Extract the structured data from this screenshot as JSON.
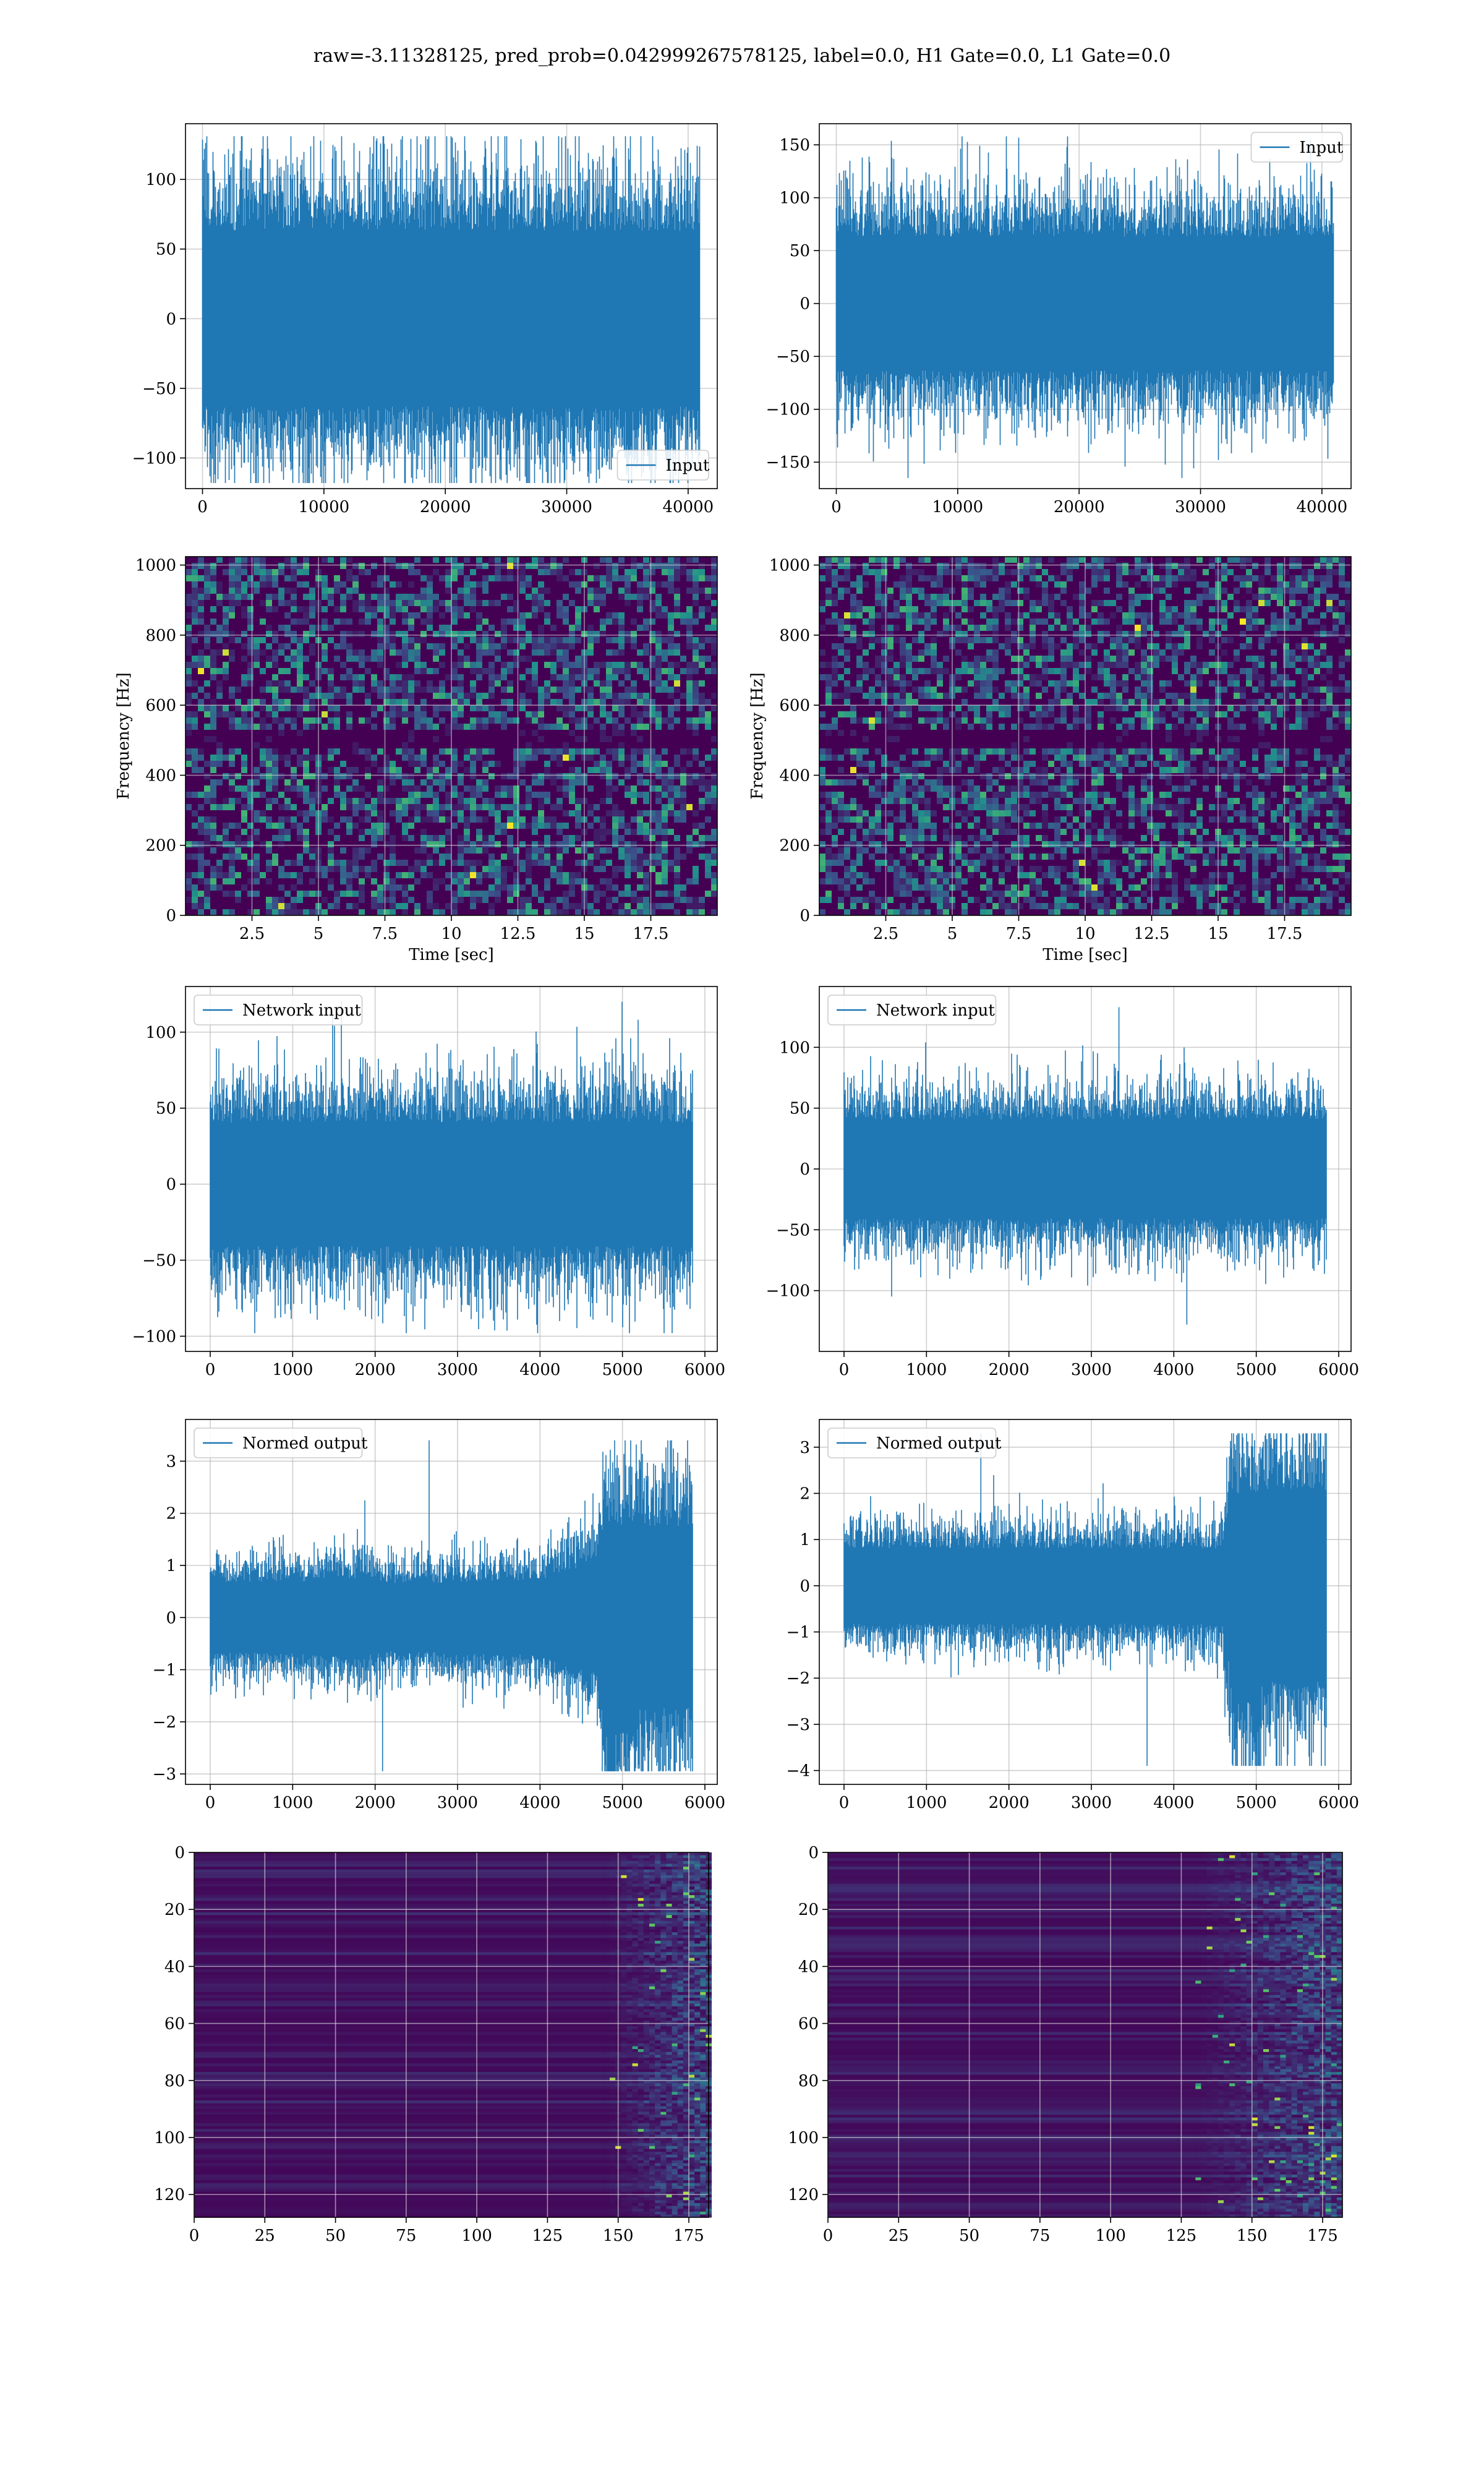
{
  "figure": {
    "suptitle": "raw=-3.11328125, pred_prob=0.042999267578125, label=0.0, H1 Gate=0.0, L1 Gate=0.0",
    "background": "#ffffff"
  },
  "colors": {
    "series": "#1f77b4",
    "grid": "#b0b0b0",
    "viridis_dark": "#440154",
    "viridis_mid": "#21918c",
    "viridis_light": "#5ec962",
    "viridis_yellow": "#fde725"
  },
  "chart_data": [
    {
      "id": "h1-input",
      "type": "line",
      "legend": "Input",
      "legend_loc": "lower right",
      "x": [
        0,
        40960
      ],
      "y_envelope_core": [
        -70,
        70
      ],
      "y_extremes": [
        -118,
        131
      ],
      "xlim": [
        -1400,
        42400
      ],
      "ylim": [
        -122,
        140
      ],
      "xticks": [
        0,
        10000,
        20000,
        30000,
        40000
      ],
      "yticks": [
        -100,
        -50,
        0,
        50,
        100
      ],
      "grid": true
    },
    {
      "id": "l1-input",
      "type": "line",
      "legend": "Input",
      "legend_loc": "upper right",
      "x": [
        0,
        40960
      ],
      "y_envelope_core": [
        -70,
        70
      ],
      "y_extremes": [
        -165,
        158
      ],
      "xlim": [
        -1400,
        42400
      ],
      "ylim": [
        -175,
        170
      ],
      "xticks": [
        0,
        10000,
        20000,
        30000,
        40000
      ],
      "yticks": [
        -150,
        -100,
        -50,
        0,
        50,
        100,
        150
      ],
      "grid": true
    },
    {
      "id": "h1-spectrogram",
      "type": "heatmap",
      "colormap": "viridis",
      "xlabel": "Time [sec]",
      "ylabel": "Frequency [Hz]",
      "xlim": [
        0,
        20
      ],
      "ylim": [
        0,
        1024
      ],
      "xticks": [
        2.5,
        5.0,
        7.5,
        10.0,
        12.5,
        15.0,
        17.5
      ],
      "yticks": [
        0,
        200,
        400,
        600,
        800,
        1000
      ],
      "dark_band_hz": [
        490,
        520
      ],
      "grid": true
    },
    {
      "id": "l1-spectrogram",
      "type": "heatmap",
      "colormap": "viridis",
      "xlabel": "Time [sec]",
      "ylabel": "Frequency [Hz]",
      "xlim": [
        0,
        20
      ],
      "ylim": [
        0,
        1024
      ],
      "xticks": [
        2.5,
        5.0,
        7.5,
        10.0,
        12.5,
        15.0,
        17.5
      ],
      "yticks": [
        0,
        200,
        400,
        600,
        800,
        1000
      ],
      "dark_band_hz": [
        490,
        520
      ],
      "grid": true
    },
    {
      "id": "h1-network-input",
      "type": "line",
      "legend": "Network input",
      "legend_loc": "upper left",
      "x": [
        0,
        5850
      ],
      "y_envelope_core": [
        -45,
        45
      ],
      "y_extremes": [
        -98,
        120
      ],
      "xlim": [
        -300,
        6150
      ],
      "ylim": [
        -110,
        130
      ],
      "xticks": [
        0,
        1000,
        2000,
        3000,
        4000,
        5000,
        6000
      ],
      "yticks": [
        -100,
        -50,
        0,
        50,
        100
      ],
      "grid": true
    },
    {
      "id": "l1-network-input",
      "type": "line",
      "legend": "Network input",
      "legend_loc": "upper left",
      "x": [
        0,
        5850
      ],
      "y_envelope_core": [
        -45,
        45
      ],
      "y_extremes": [
        -128,
        133
      ],
      "xlim": [
        -300,
        6150
      ],
      "ylim": [
        -150,
        150
      ],
      "xticks": [
        0,
        1000,
        2000,
        3000,
        4000,
        5000,
        6000
      ],
      "yticks": [
        -100,
        -50,
        0,
        50,
        100
      ],
      "grid": true
    },
    {
      "id": "h1-normed-output",
      "type": "line",
      "legend": "Normed output",
      "legend_loc": "upper left",
      "x": [
        0,
        5850
      ],
      "envelope": [
        [
          0,
          0.75
        ],
        [
          1000,
          0.75
        ],
        [
          1900,
          0.85
        ],
        [
          2000,
          0.7
        ],
        [
          4000,
          0.8
        ],
        [
          4700,
          1.2
        ],
        [
          4800,
          2.0
        ],
        [
          5850,
          1.9
        ]
      ],
      "y_extremes": [
        -2.95,
        3.4
      ],
      "xlim": [
        -300,
        6150
      ],
      "ylim": [
        -3.2,
        3.8
      ],
      "xticks": [
        0,
        1000,
        2000,
        3000,
        4000,
        5000,
        6000
      ],
      "yticks": [
        -3,
        -2,
        -1,
        0,
        1,
        2,
        3
      ],
      "grid": true
    },
    {
      "id": "l1-normed-output",
      "type": "line",
      "legend": "Normed output",
      "legend_loc": "upper left",
      "x": [
        0,
        5850
      ],
      "envelope": [
        [
          0,
          0.9
        ],
        [
          4600,
          0.9
        ],
        [
          4700,
          2.2
        ],
        [
          5850,
          2.3
        ]
      ],
      "y_extremes": [
        -3.9,
        3.3
      ],
      "xlim": [
        -300,
        6150
      ],
      "ylim": [
        -4.3,
        3.6
      ],
      "xticks": [
        0,
        1000,
        2000,
        3000,
        4000,
        5000,
        6000
      ],
      "yticks": [
        -4,
        -3,
        -2,
        -1,
        0,
        1,
        2,
        3
      ],
      "grid": true
    },
    {
      "id": "h1-activation-map",
      "type": "heatmap",
      "colormap": "viridis",
      "rows": 128,
      "cols": 182,
      "active_from_col": 145,
      "xlim": [
        0,
        182
      ],
      "ylim": [
        128,
        0
      ],
      "xticks": [
        0,
        25,
        50,
        75,
        100,
        125,
        150,
        175
      ],
      "yticks": [
        0,
        20,
        40,
        60,
        80,
        100,
        120
      ],
      "grid": true
    },
    {
      "id": "l1-activation-map",
      "type": "heatmap",
      "colormap": "viridis",
      "rows": 128,
      "cols": 182,
      "active_from_col": 130,
      "xlim": [
        0,
        182
      ],
      "ylim": [
        128,
        0
      ],
      "xticks": [
        0,
        25,
        50,
        75,
        100,
        125,
        150,
        175
      ],
      "yticks": [
        0,
        20,
        40,
        60,
        80,
        100,
        120
      ],
      "grid": true
    }
  ]
}
